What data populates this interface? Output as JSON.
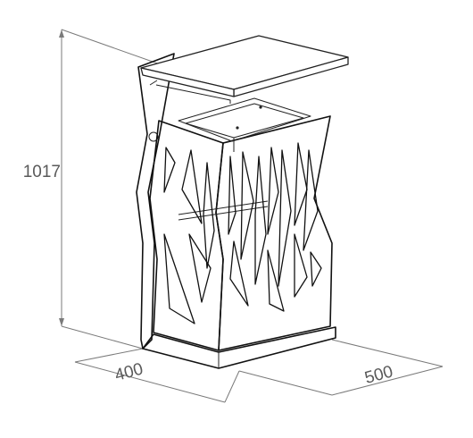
{
  "diagram": {
    "subject": "litter bin",
    "colors": {
      "line": "#111111",
      "dimension": "#7a7a7a",
      "dimension_text": "#5a5a5a",
      "background": "#ffffff"
    }
  },
  "dimensions": {
    "height": "1017",
    "width": "400",
    "depth": "500"
  }
}
